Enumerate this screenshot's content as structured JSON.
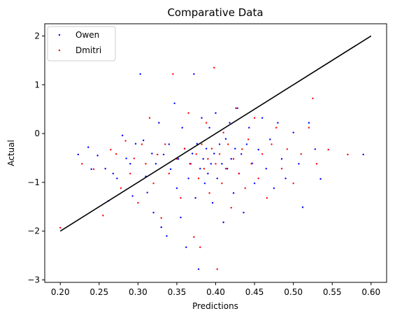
{
  "chart_data": {
    "type": "scatter",
    "title": "Comparative Data",
    "xlabel": "Predictions",
    "ylabel": "Actual",
    "xlim": [
      0.18,
      0.62
    ],
    "ylim": [
      -3.05,
      2.25
    ],
    "xticks": [
      "0.20",
      "0.25",
      "0.30",
      "0.35",
      "0.40",
      "0.45",
      "0.50",
      "0.55",
      "0.60"
    ],
    "yticks": [
      "−3",
      "−2",
      "−1",
      "0",
      "1",
      "2"
    ],
    "grid": false,
    "legend_position": "top-left",
    "reference_line": {
      "x": [
        0.2,
        0.6
      ],
      "y": [
        -2,
        2
      ],
      "color": "#000000"
    },
    "series": [
      {
        "name": "Owen",
        "color": "#0000ff",
        "points": [
          [
            0.223,
            -0.43
          ],
          [
            0.236,
            -0.28
          ],
          [
            0.24,
            -0.73
          ],
          [
            0.248,
            -0.45
          ],
          [
            0.258,
            -0.72
          ],
          [
            0.262,
            -1.38
          ],
          [
            0.268,
            -0.82
          ],
          [
            0.273,
            -0.92
          ],
          [
            0.28,
            -0.04
          ],
          [
            0.285,
            -0.51
          ],
          [
            0.29,
            -0.62
          ],
          [
            0.293,
            -1.28
          ],
          [
            0.297,
            -0.21
          ],
          [
            0.303,
            1.22
          ],
          [
            0.307,
            -0.14
          ],
          [
            0.31,
            -0.88
          ],
          [
            0.312,
            -1.21
          ],
          [
            0.318,
            -0.41
          ],
          [
            0.32,
            -1.62
          ],
          [
            0.323,
            -0.62
          ],
          [
            0.327,
            0.22
          ],
          [
            0.33,
            -1.92
          ],
          [
            0.333,
            -0.43
          ],
          [
            0.337,
            -2.1
          ],
          [
            0.34,
            -0.22
          ],
          [
            0.342,
            -0.73
          ],
          [
            0.347,
            0.62
          ],
          [
            0.35,
            -1.12
          ],
          [
            0.352,
            -0.52
          ],
          [
            0.355,
            -1.72
          ],
          [
            0.357,
            0.12
          ],
          [
            0.36,
            -0.31
          ],
          [
            0.362,
            -2.33
          ],
          [
            0.365,
            -0.92
          ],
          [
            0.367,
            -0.62
          ],
          [
            0.37,
            -0.41
          ],
          [
            0.372,
            1.22
          ],
          [
            0.374,
            -1.32
          ],
          [
            0.376,
            -0.21
          ],
          [
            0.378,
            -2.78
          ],
          [
            0.38,
            -0.72
          ],
          [
            0.382,
            0.32
          ],
          [
            0.384,
            -0.52
          ],
          [
            0.386,
            -1.02
          ],
          [
            0.388,
            -0.31
          ],
          [
            0.39,
            -0.82
          ],
          [
            0.392,
            0.12
          ],
          [
            0.394,
            -0.62
          ],
          [
            0.396,
            -1.42
          ],
          [
            0.398,
            -0.41
          ],
          [
            0.4,
            0.42
          ],
          [
            0.402,
            -0.92
          ],
          [
            0.405,
            -0.22
          ],
          [
            0.408,
            -0.62
          ],
          [
            0.41,
            -1.82
          ],
          [
            0.413,
            -0.11
          ],
          [
            0.415,
            -0.72
          ],
          [
            0.418,
            0.22
          ],
          [
            0.42,
            -0.52
          ],
          [
            0.423,
            -1.22
          ],
          [
            0.425,
            -0.31
          ],
          [
            0.428,
            0.52
          ],
          [
            0.43,
            -0.82
          ],
          [
            0.433,
            -0.42
          ],
          [
            0.436,
            -1.62
          ],
          [
            0.44,
            -0.22
          ],
          [
            0.443,
            0.12
          ],
          [
            0.447,
            -0.61
          ],
          [
            0.45,
            -1.02
          ],
          [
            0.455,
            -0.33
          ],
          [
            0.46,
            0.32
          ],
          [
            0.465,
            -0.72
          ],
          [
            0.47,
            -0.12
          ],
          [
            0.475,
            -1.12
          ],
          [
            0.48,
            0.22
          ],
          [
            0.485,
            -0.52
          ],
          [
            0.49,
            -0.92
          ],
          [
            0.5,
            0.02
          ],
          [
            0.507,
            -0.62
          ],
          [
            0.512,
            -1.51
          ],
          [
            0.52,
            0.22
          ],
          [
            0.528,
            -0.32
          ],
          [
            0.535,
            -0.93
          ],
          [
            0.59,
            -0.43
          ]
        ]
      },
      {
        "name": "Dmitri",
        "color": "#ff0000",
        "points": [
          [
            0.2,
            -1.93
          ],
          [
            0.228,
            -0.62
          ],
          [
            0.243,
            -0.73
          ],
          [
            0.255,
            -1.68
          ],
          [
            0.265,
            -0.33
          ],
          [
            0.272,
            -0.42
          ],
          [
            0.278,
            -1.12
          ],
          [
            0.284,
            -0.15
          ],
          [
            0.29,
            -0.82
          ],
          [
            0.295,
            -0.51
          ],
          [
            0.3,
            -1.42
          ],
          [
            0.305,
            -0.22
          ],
          [
            0.31,
            -0.62
          ],
          [
            0.315,
            0.32
          ],
          [
            0.32,
            -1.02
          ],
          [
            0.325,
            -0.43
          ],
          [
            0.33,
            -1.73
          ],
          [
            0.335,
            -0.22
          ],
          [
            0.34,
            -0.82
          ],
          [
            0.345,
            1.22
          ],
          [
            0.35,
            -0.52
          ],
          [
            0.355,
            -1.32
          ],
          [
            0.36,
            -0.31
          ],
          [
            0.365,
            0.42
          ],
          [
            0.368,
            -0.62
          ],
          [
            0.372,
            -2.12
          ],
          [
            0.375,
            -0.42
          ],
          [
            0.378,
            -0.92
          ],
          [
            0.38,
            -2.33
          ],
          [
            0.382,
            -0.22
          ],
          [
            0.385,
            -0.72
          ],
          [
            0.388,
            0.22
          ],
          [
            0.39,
            -0.52
          ],
          [
            0.392,
            -1.22
          ],
          [
            0.395,
            -0.31
          ],
          [
            0.398,
            1.35
          ],
          [
            0.4,
            -0.62
          ],
          [
            0.402,
            -2.78
          ],
          [
            0.405,
            -0.42
          ],
          [
            0.408,
            -1.02
          ],
          [
            0.41,
            0.02
          ],
          [
            0.413,
            -0.72
          ],
          [
            0.416,
            -0.22
          ],
          [
            0.42,
            -1.52
          ],
          [
            0.423,
            -0.52
          ],
          [
            0.426,
            0.52
          ],
          [
            0.43,
            -0.82
          ],
          [
            0.434,
            -0.32
          ],
          [
            0.438,
            -1.12
          ],
          [
            0.442,
            -0.12
          ],
          [
            0.446,
            -0.62
          ],
          [
            0.45,
            0.32
          ],
          [
            0.455,
            -0.92
          ],
          [
            0.46,
            -0.42
          ],
          [
            0.466,
            -1.32
          ],
          [
            0.472,
            -0.22
          ],
          [
            0.478,
            0.12
          ],
          [
            0.485,
            -0.72
          ],
          [
            0.492,
            -0.32
          ],
          [
            0.5,
            -1.02
          ],
          [
            0.51,
            -0.42
          ],
          [
            0.52,
            0.12
          ],
          [
            0.525,
            0.72
          ],
          [
            0.53,
            -0.62
          ],
          [
            0.545,
            -0.33
          ],
          [
            0.57,
            -0.43
          ]
        ]
      }
    ]
  }
}
